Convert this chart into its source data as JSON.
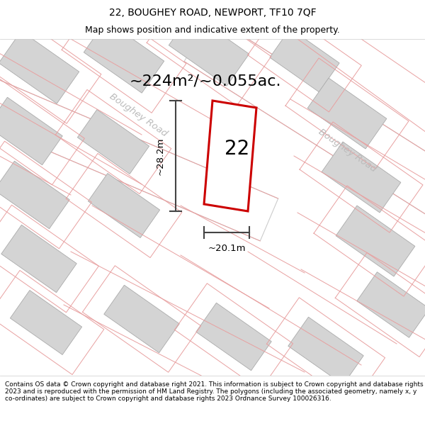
{
  "title": "22, BOUGHEY ROAD, NEWPORT, TF10 7QF",
  "subtitle": "Map shows position and indicative extent of the property.",
  "area_label": "~224m²/~0.055ac.",
  "property_number": "22",
  "width_label": "~20.1m",
  "height_label": "~28.2m",
  "footer_text": "Contains OS data © Crown copyright and database right 2021. This information is subject to Crown copyright and database rights 2023 and is reproduced with the permission of HM Land Registry. The polygons (including the associated geometry, namely x, y co-ordinates) are subject to Crown copyright and database rights 2023 Ordnance Survey 100026316.",
  "road_label_1": "Boughey Road",
  "road_label_2": "Boughey Road",
  "red_color": "#cc0000",
  "building_color": "#d4d4d4",
  "building_edge": "#aaaaaa",
  "pink_color": "#e8a0a0",
  "road_label_color": "#bbbbbb",
  "dim_line_color": "#444444",
  "title_size": 10,
  "subtitle_size": 9,
  "area_label_size": 16,
  "map_bg": "#f7f7f7"
}
